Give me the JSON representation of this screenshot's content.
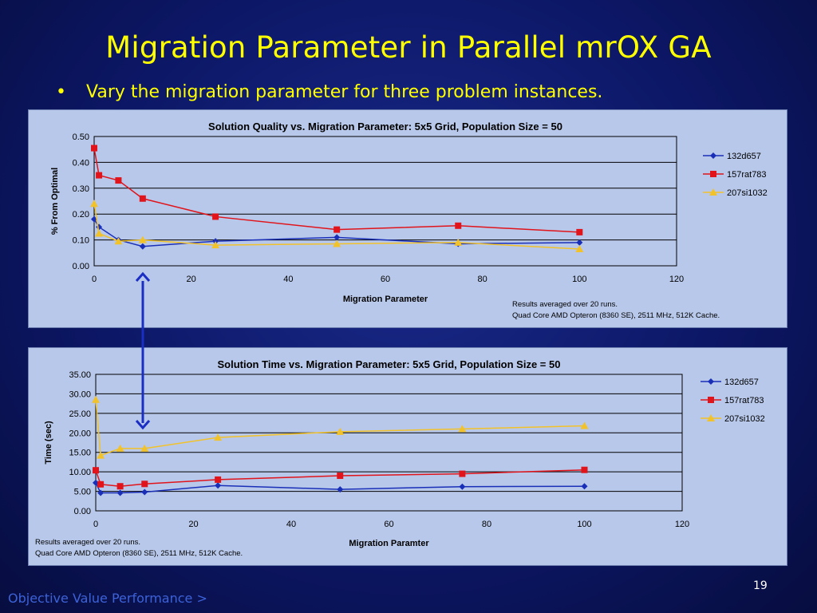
{
  "slide": {
    "title": "Migration Parameter in Parallel mrOX GA",
    "bullet_symbol": "•",
    "bullet": "Vary the migration parameter for three problem instances.",
    "footer_link": "Objective Value Performance >",
    "page_number": "19"
  },
  "colors": {
    "132d657": "#1a2fb8",
    "157rat783": "#e0141a",
    "207si1032": "#f2c22a",
    "arrow": "#1b2ec4"
  },
  "chart_data": [
    {
      "type": "line",
      "title": "Solution Quality vs. Migration Parameter:  5x5 Grid, Population Size = 50",
      "xlabel": "Migration Parameter",
      "ylabel": "% From Optimal",
      "xlim": [
        0,
        120
      ],
      "ylim": [
        0,
        0.5
      ],
      "x_ticks": [
        "0",
        "20",
        "40",
        "60",
        "80",
        "100",
        "120"
      ],
      "y_ticks": [
        "0.00",
        "0.10",
        "0.20",
        "0.30",
        "0.40",
        "0.50"
      ],
      "grid": true,
      "legend_position": "right",
      "x": [
        0,
        1,
        5,
        10,
        25,
        50,
        75,
        100
      ],
      "series": [
        {
          "name": "132d657",
          "marker": "diamond",
          "values": [
            0.18,
            0.15,
            0.1,
            0.075,
            0.095,
            0.11,
            0.085,
            0.09
          ]
        },
        {
          "name": "157rat783",
          "marker": "square",
          "values": [
            0.455,
            0.35,
            0.33,
            0.26,
            0.19,
            0.14,
            0.155,
            0.13
          ]
        },
        {
          "name": "207si1032",
          "marker": "triangle",
          "values": [
            0.24,
            0.125,
            0.095,
            0.1,
            0.08,
            0.085,
            0.09,
            0.065
          ]
        }
      ],
      "notes": [
        "Results averaged over 20 runs.",
        "Quad Core AMD Opteron (8360 SE), 2511 MHz, 512K Cache."
      ]
    },
    {
      "type": "line",
      "title": "Solution Time vs. Migration Parameter:  5x5 Grid, Population Size = 50",
      "xlabel": "Migration Paramter",
      "ylabel": "Time (sec)",
      "xlim": [
        0,
        120
      ],
      "ylim": [
        0,
        35
      ],
      "x_ticks": [
        "0",
        "20",
        "40",
        "60",
        "80",
        "100",
        "120"
      ],
      "y_ticks": [
        "0.00",
        "5.00",
        "10.00",
        "15.00",
        "20.00",
        "25.00",
        "30.00",
        "35.00"
      ],
      "grid": true,
      "legend_position": "right",
      "x": [
        0,
        1,
        5,
        10,
        25,
        50,
        75,
        100
      ],
      "series": [
        {
          "name": "132d657",
          "marker": "diamond",
          "values": [
            7.2,
            4.6,
            4.6,
            4.8,
            6.5,
            5.5,
            6.2,
            6.3
          ]
        },
        {
          "name": "157rat783",
          "marker": "square",
          "values": [
            10.4,
            6.8,
            6.3,
            6.9,
            8.0,
            9.0,
            9.5,
            10.5
          ]
        },
        {
          "name": "207si1032",
          "marker": "triangle",
          "values": [
            28.5,
            14.2,
            16.0,
            16.0,
            18.8,
            20.3,
            21.0,
            21.8
          ]
        }
      ],
      "notes": [
        "Results averaged over 20 runs.",
        "Quad Core AMD Opteron (8360 SE), 2511 MHz, 512K Cache."
      ]
    }
  ]
}
